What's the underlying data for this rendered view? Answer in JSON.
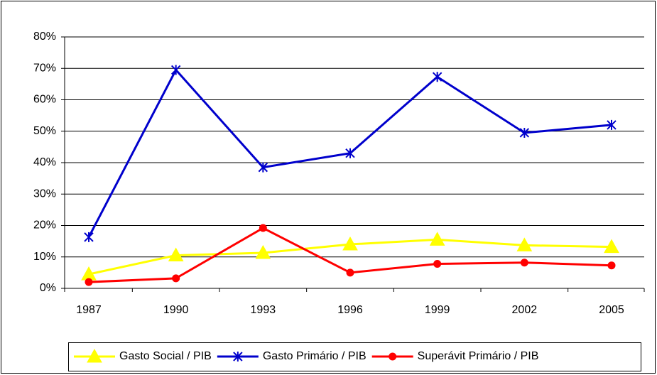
{
  "chart_data": {
    "type": "line",
    "categories": [
      "1987",
      "1990",
      "1993",
      "1996",
      "1999",
      "2002",
      "2005"
    ],
    "series": [
      {
        "name": "Gasto Social / PIB",
        "color": "#ffff00",
        "marker": "triangle",
        "values": [
          4.5,
          10.5,
          11.3,
          14.0,
          15.5,
          13.7,
          13.2
        ]
      },
      {
        "name": "Gasto Primário / PIB",
        "color": "#0000cc",
        "marker": "asterisk",
        "values": [
          16.3,
          69.5,
          38.5,
          43.0,
          67.3,
          49.5,
          52.0
        ]
      },
      {
        "name": "Superávit Primário / PIB",
        "color": "#ff0000",
        "marker": "circle",
        "values": [
          2.0,
          3.2,
          19.2,
          5.0,
          7.8,
          8.2,
          7.3
        ]
      }
    ],
    "ylim": [
      0,
      80
    ],
    "yticks": [
      {
        "value": 0,
        "label": "0%"
      },
      {
        "value": 10,
        "label": "10%"
      },
      {
        "value": 20,
        "label": "20%"
      },
      {
        "value": 30,
        "label": "30%"
      },
      {
        "value": 40,
        "label": "40%"
      },
      {
        "value": 50,
        "label": "50%"
      },
      {
        "value": 60,
        "label": "60%"
      },
      {
        "value": 70,
        "label": "70%"
      },
      {
        "value": 80,
        "label": "80%"
      }
    ],
    "grid": true,
    "legend": "bottom"
  }
}
